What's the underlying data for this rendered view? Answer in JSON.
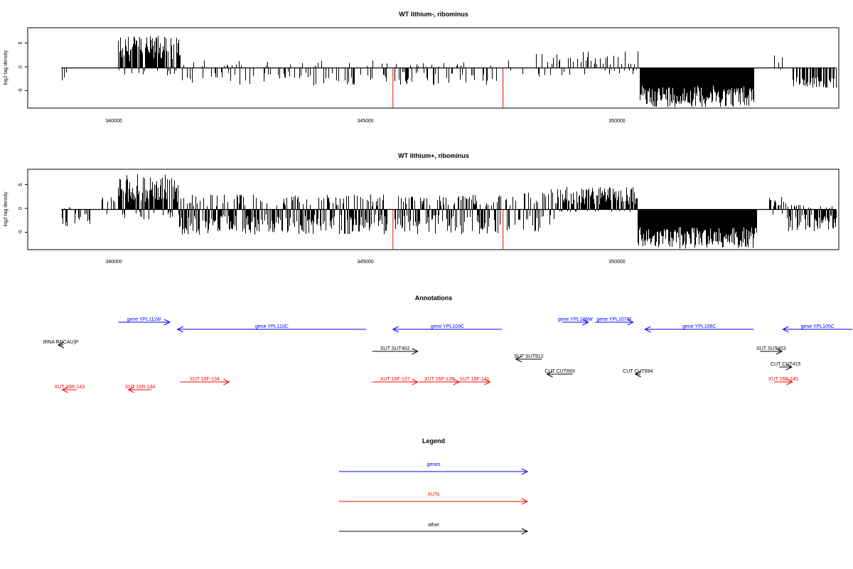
{
  "chart_data": [
    {
      "type": "bar",
      "title": "WT lithium-, ribominus",
      "ylabel": "log2 tag density",
      "xlim": [
        338200,
        353900
      ],
      "ylim": [
        -8,
        8
      ],
      "xticks": [
        340000,
        345000,
        350000
      ],
      "xtick_labels": [
        "340000",
        "345000",
        "350000"
      ],
      "yticks": [
        -5,
        0,
        5
      ],
      "ytick_labels": [
        "-5",
        "0",
        "5"
      ],
      "regions": [
        {
          "x0": 338850,
          "x1": 338950,
          "ymin": -2.5,
          "ymax": 0.2,
          "density": 0.5
        },
        {
          "x0": 339950,
          "x1": 341150,
          "ymin": -1.5,
          "ymax": 6.5,
          "density": 0.9
        },
        {
          "x0": 341150,
          "x1": 345150,
          "ymin": -3.5,
          "ymax": 1.5,
          "density": 0.3
        },
        {
          "x0": 345300,
          "x1": 347350,
          "ymin": -3.5,
          "ymax": 1.2,
          "density": 0.3
        },
        {
          "x0": 347500,
          "x1": 348450,
          "ymin": -2.5,
          "ymax": 3.0,
          "density": 0.2
        },
        {
          "x0": 348450,
          "x1": 350000,
          "ymin": -1.5,
          "ymax": 3.5,
          "density": 0.35
        },
        {
          "x0": 350050,
          "x1": 352250,
          "ymin": -7.8,
          "ymax": 0,
          "density": 1.0
        },
        {
          "x0": 352650,
          "x1": 352850,
          "ymin": -0.5,
          "ymax": 2.5,
          "density": 0.4
        },
        {
          "x0": 353000,
          "x1": 353850,
          "ymin": -4.0,
          "ymax": 0,
          "density": 0.7
        }
      ],
      "red_marks": [
        345270,
        347400
      ]
    },
    {
      "type": "bar",
      "title": "WT lithium+, ribominus",
      "ylabel": "log2 tag density",
      "xlim": [
        338200,
        353900
      ],
      "ylim": [
        -8,
        8
      ],
      "xticks": [
        340000,
        345000,
        350000
      ],
      "xtick_labels": [
        "340000",
        "345000",
        "350000"
      ],
      "yticks": [
        -5,
        0,
        5
      ],
      "ytick_labels": [
        "-5",
        "0",
        "5"
      ],
      "regions": [
        {
          "x0": 338850,
          "x1": 339400,
          "ymin": -3.5,
          "ymax": 0.5,
          "density": 0.4
        },
        {
          "x0": 339600,
          "x1": 339950,
          "ymin": -1.0,
          "ymax": 2.5,
          "density": 0.4
        },
        {
          "x0": 339950,
          "x1": 341100,
          "ymin": -2.0,
          "ymax": 7.0,
          "density": 1.0
        },
        {
          "x0": 341100,
          "x1": 345150,
          "ymin": -5.0,
          "ymax": 3.0,
          "density": 0.9
        },
        {
          "x0": 345300,
          "x1": 347350,
          "ymin": -5.0,
          "ymax": 3.0,
          "density": 0.8
        },
        {
          "x0": 347450,
          "x1": 348450,
          "ymin": -4.5,
          "ymax": 4.0,
          "density": 0.6
        },
        {
          "x0": 348450,
          "x1": 350000,
          "ymin": -0.5,
          "ymax": 4.5,
          "density": 0.9
        },
        {
          "x0": 350000,
          "x1": 352300,
          "ymin": -7.8,
          "ymax": 0,
          "density": 1.0
        },
        {
          "x0": 352550,
          "x1": 352900,
          "ymin": -1.0,
          "ymax": 2.5,
          "density": 0.5
        },
        {
          "x0": 352900,
          "x1": 353850,
          "ymin": -4.5,
          "ymax": 1.0,
          "density": 0.9
        }
      ],
      "red_marks": [
        345270,
        347400
      ]
    }
  ],
  "annotations": {
    "title": "Annotations",
    "features": [
      {
        "label": "gene YPL111W",
        "color": "#0000ff",
        "x0": 339950,
        "x1": 340950,
        "dir": "right",
        "row": 0
      },
      {
        "label": "gene YPL110C",
        "color": "#0000ff",
        "x0": 341100,
        "x1": 344750,
        "dir": "left",
        "row": 1
      },
      {
        "label": "gene YPL109C",
        "color": "#0000ff",
        "x0": 345270,
        "x1": 347380,
        "dir": "left",
        "row": 1
      },
      {
        "label": "gene YPL108W",
        "color": "#0000ff",
        "x0": 348550,
        "x1": 349050,
        "dir": "right",
        "row": 0
      },
      {
        "label": "gene YPL107W",
        "color": "#0000ff",
        "x0": 349180,
        "x1": 349920,
        "dir": "right",
        "row": 0
      },
      {
        "label": "gene YPL106C",
        "color": "#0000ff",
        "x0": 350150,
        "x1": 352250,
        "dir": "left",
        "row": 1
      },
      {
        "label": "gene YPL105C",
        "color": "#0000ff",
        "x0": 352820,
        "x1": 355500,
        "dir": "left",
        "row": 1
      },
      {
        "label": "tRNA fM(CAU)P",
        "color": "#000000",
        "x0": 338790,
        "x1": 338890,
        "dir": "left",
        "row": 2
      },
      {
        "label": "SUT SUT402",
        "color": "#000000",
        "x0": 344870,
        "x1": 345750,
        "dir": "right",
        "row": 3
      },
      {
        "label": "SUT SUT812",
        "color": "#000000",
        "x0": 347650,
        "x1": 348150,
        "dir": "left",
        "row": 4
      },
      {
        "label": "SUT SUT403",
        "color": "#000000",
        "x0": 352380,
        "x1": 352800,
        "dir": "right",
        "row": 3
      },
      {
        "label": "CUT CUT415",
        "color": "#000000",
        "x0": 352750,
        "x1": 352990,
        "dir": "right",
        "row": 5
      },
      {
        "label": "CUT CUT893",
        "color": "#000000",
        "x0": 348250,
        "x1": 348750,
        "dir": "left",
        "row": 6
      },
      {
        "label": "CUT CUT894",
        "color": "#000000",
        "x0": 349960,
        "x1": 350060,
        "dir": "left",
        "row": 6
      },
      {
        "label": "XUT 16R-143",
        "color": "#ff0000",
        "x0": 338870,
        "x1": 339150,
        "dir": "left",
        "row": 8
      },
      {
        "label": "XUT 16R-144",
        "color": "#ff0000",
        "x0": 340150,
        "x1": 340600,
        "dir": "left",
        "row": 8
      },
      {
        "label": "XUT 16F-134",
        "color": "#ff0000",
        "x0": 341150,
        "x1": 342100,
        "dir": "right",
        "row": 7
      },
      {
        "label": "XUT 16F-137",
        "color": "#ff0000",
        "x0": 344870,
        "x1": 345750,
        "dir": "right",
        "row": 7
      },
      {
        "label": "XUT 16F-139",
        "color": "#ff0000",
        "x0": 345780,
        "x1": 346550,
        "dir": "right",
        "row": 7
      },
      {
        "label": "XUT 16F-141",
        "color": "#ff0000",
        "x0": 346550,
        "x1": 347150,
        "dir": "right",
        "row": 7
      },
      {
        "label": "XUT 16F-145",
        "color": "#ff0000",
        "x0": 352650,
        "x1": 353000,
        "dir": "right",
        "row": 7
      }
    ]
  },
  "legend": {
    "title": "Legend",
    "items": [
      {
        "label": "genes",
        "color": "#0000ff"
      },
      {
        "label": "XUTs",
        "color": "#ff0000"
      },
      {
        "label": "other",
        "color": "#000000"
      }
    ]
  }
}
